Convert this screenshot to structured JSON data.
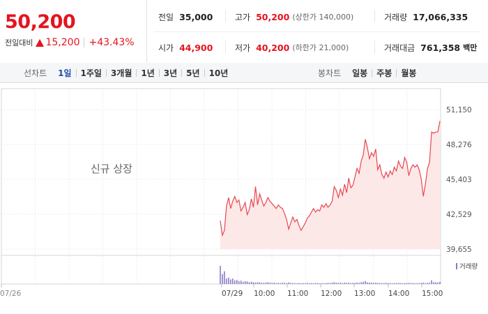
{
  "price": {
    "current": "50,200",
    "change_label": "전일대비",
    "change": "15,200",
    "change_pct": "+43.43%"
  },
  "info": {
    "prev_label": "전일",
    "prev": "35,000",
    "open_label": "시가",
    "open": "44,900",
    "high_label": "고가",
    "high": "50,200",
    "high_sub": "(상한가 140,000)",
    "low_label": "저가",
    "low": "40,200",
    "low_sub": "(하한가 21,000)",
    "volume_label": "거래량",
    "volume": "17,066,335",
    "amount_label": "거래대금",
    "amount": "761,358",
    "amount_unit": "백만"
  },
  "toolbar": {
    "line_label": "선차트",
    "line_items": [
      "1일",
      "1주일",
      "3개월",
      "1년",
      "3년",
      "5년",
      "10년"
    ],
    "active": "1일",
    "candle_label": "봉차트",
    "candle_items": [
      "일봉",
      "주봉",
      "월봉"
    ]
  },
  "colors": {
    "up": "#e4141f",
    "line": "#e8474f",
    "fill": "#fde8e8",
    "volume": "#8c78c8",
    "active_tab": "#1f4fa8"
  },
  "chart_data": {
    "type": "area",
    "annotation": "신규 상장",
    "y_ticks": [
      "51,150",
      "48,276",
      "45,403",
      "42,529",
      "39,655"
    ],
    "ylim": [
      39655,
      51150
    ],
    "x_ticks": [
      "07/26",
      "07/29",
      "10:00",
      "11:00",
      "12:00",
      "13:00",
      "14:00",
      "15:00"
    ],
    "volume_legend": "거래량",
    "series": [
      {
        "values": [
          42000,
          40800,
          41200,
          43200,
          43900,
          43000,
          43600,
          44000,
          43500,
          43700,
          42800,
          43100,
          43500,
          42500,
          42900,
          43800,
          43100,
          44800,
          43300,
          44200,
          43700,
          43200,
          43500,
          43900,
          43600,
          43400,
          43200,
          43000,
          43300,
          43100,
          43000,
          42600,
          42100,
          41300,
          41800,
          42300,
          41900,
          42100,
          41600,
          41200,
          41500,
          41800,
          42200,
          42400,
          42700,
          43000,
          42700,
          42900,
          42800,
          43300,
          43100,
          43400,
          43100,
          43300,
          43600,
          44800,
          44500,
          43900,
          44600,
          44100,
          45000,
          44300,
          45500,
          44700,
          44900,
          45600,
          46300,
          45900,
          46900,
          47400,
          48700,
          48000,
          47100,
          47600,
          47300,
          47900,
          46200,
          46600,
          45800,
          45500,
          46000,
          45600,
          46100,
          45800,
          46400,
          46100,
          46900,
          46500,
          46300,
          47200,
          46800,
          45700,
          46300,
          46600,
          46400,
          46600,
          46200,
          45400,
          44000,
          45000,
          46300,
          46800,
          49300,
          49200,
          49300,
          49300,
          50200
        ]
      }
    ],
    "volume": [
      1.0,
      0.55,
      0.7,
      0.3,
      0.35,
      0.25,
      0.3,
      0.2,
      0.22,
      0.15,
      0.18,
      0.12,
      0.15,
      0.14,
      0.1,
      0.12,
      0.1,
      0.08,
      0.1,
      0.09,
      0.07,
      0.06,
      0.08,
      0.1,
      0.07,
      0.06,
      0.07,
      0.05,
      0.06,
      0.05,
      0.07,
      0.06,
      0.05,
      0.09,
      0.06,
      0.05,
      0.05,
      0.04,
      0.05,
      0.04,
      0.05,
      0.04,
      0.06,
      0.04,
      0.05,
      0.04,
      0.05,
      0.05,
      0.04,
      0.05,
      0.04,
      0.05,
      0.06,
      0.05,
      0.07,
      0.1,
      0.07,
      0.06,
      0.07,
      0.05,
      0.08,
      0.06,
      0.07,
      0.05,
      0.06,
      0.06,
      0.08,
      0.06,
      0.1,
      0.12,
      0.16,
      0.09,
      0.08,
      0.07,
      0.06,
      0.07,
      0.06,
      0.05,
      0.05,
      0.05,
      0.06,
      0.05,
      0.05,
      0.04,
      0.05,
      0.05,
      0.06,
      0.05,
      0.04,
      0.05,
      0.05,
      0.06,
      0.05,
      0.05,
      0.04,
      0.05,
      0.05,
      0.06,
      0.07,
      0.05,
      0.06,
      0.07,
      0.2,
      0.1,
      0.1,
      0.08,
      0.12
    ]
  }
}
